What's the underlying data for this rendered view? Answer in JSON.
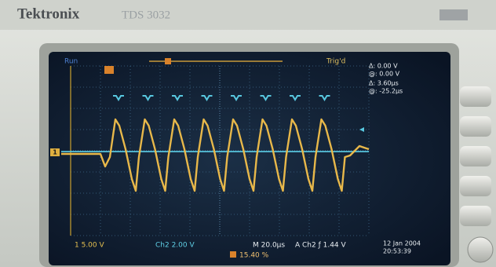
{
  "header": {
    "brand": "Tektronix",
    "model": "TDS 3032"
  },
  "screen": {
    "status": "Run",
    "trigger_state": "Trig'd",
    "ch1_marker": "1",
    "cursor": {
      "delta_v": "Δ: 0.00 V",
      "at_v": "@: 0.00 V",
      "delta_t": "Δ: 3.60μs",
      "at_t": "@: -25.2μs"
    },
    "bottom": {
      "ch1": "1  5.00 V",
      "ch2": "Ch2  2.00 V",
      "timebase": "M 20.0μs",
      "trigger": "A  Ch2  ƒ  1.44 V",
      "date": "12 Jan  2004",
      "time": "20:53:39",
      "position": "15.40 %"
    }
  }
}
